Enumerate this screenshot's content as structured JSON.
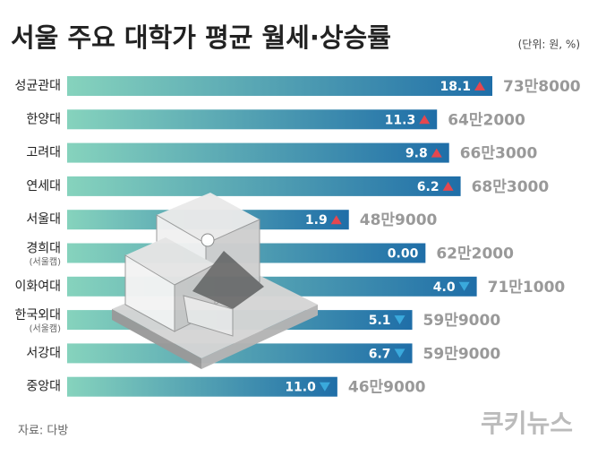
{
  "chart_data": {
    "type": "bar",
    "orientation": "horizontal",
    "title": "서울 주요 대학가 평균 월세·상승률",
    "unit": "(단위: 원, %)",
    "source": "자료: 다방",
    "brand": "쿠키뉴스",
    "categories": [
      "성균관대",
      "한양대",
      "고려대",
      "연세대",
      "서울대",
      "경희대",
      "이화여대",
      "한국외대",
      "서강대",
      "중앙대"
    ],
    "sublabels": [
      null,
      null,
      null,
      null,
      null,
      "(서울캠)",
      null,
      "(서울캠)",
      null,
      null
    ],
    "series": [
      {
        "name": "평균 월세",
        "color_start": "#86d3bd",
        "color": "#1f6ea8",
        "values": [
          738000,
          642000,
          663000,
          683000,
          489000,
          622000,
          711000,
          599000,
          599000,
          469000
        ],
        "value_labels": [
          "73만8000",
          "64만2000",
          "66만3000",
          "68만3000",
          "48만9000",
          "62만2000",
          "71만1000",
          "59만9000",
          "59만9000",
          "46만9000"
        ]
      },
      {
        "name": "상승률",
        "values": [
          18.1,
          11.3,
          9.8,
          6.2,
          1.9,
          0,
          4.0,
          5.1,
          6.7,
          11.0
        ],
        "value_labels": [
          "18.1",
          "11.3",
          "9.8",
          "6.2",
          "1.9",
          "0.00",
          "4.0",
          "5.1",
          "6.7",
          "11.0"
        ],
        "direction": [
          "up",
          "up",
          "up",
          "up",
          "up",
          "none",
          "down",
          "down",
          "down",
          "down"
        ],
        "up_color": "#e5474f",
        "down_color": "#3aa9dc"
      }
    ]
  }
}
